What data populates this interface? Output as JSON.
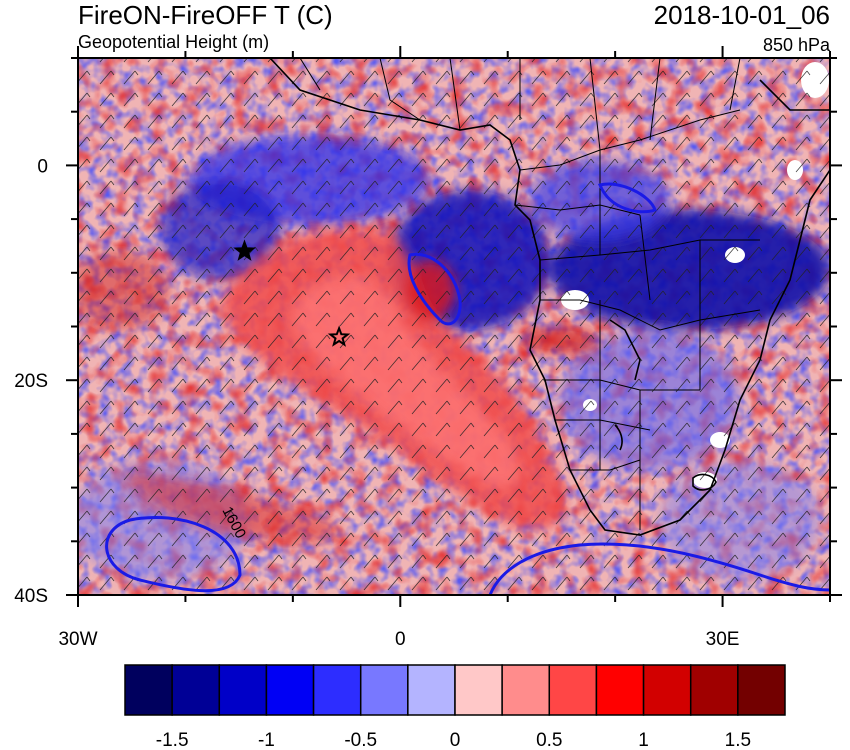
{
  "header": {
    "title": "FireON-FireOFF T (C)",
    "subtitle": "Geopotential Height (m)",
    "datetime": "2018-10-01_06",
    "level": "850 hPa"
  },
  "map": {
    "projection": "cylindrical-equidistant",
    "lon_range": [
      -30,
      40
    ],
    "lat_range": [
      -40,
      10
    ],
    "x_ticks": [
      {
        "value": -30,
        "label": "30W"
      },
      {
        "value": 0,
        "label": "0"
      },
      {
        "value": 30,
        "label": "30E"
      }
    ],
    "y_ticks": [
      {
        "value": 0,
        "label": "0"
      },
      {
        "value": -20,
        "label": "20S"
      },
      {
        "value": -40,
        "label": "40S"
      }
    ],
    "x_minor_step": 10,
    "y_minor_step": 5,
    "contour_label": "1600",
    "markers": [
      {
        "type": "filled-star",
        "lon": -14.5,
        "lat": -8
      },
      {
        "type": "open-star",
        "lon": -5.7,
        "lat": -16
      }
    ],
    "colors": {
      "ocean_background": "#f2b3b3",
      "contour": "#1a1ae6",
      "borders": "#000000"
    }
  },
  "colorbar": {
    "colors": [
      "#00005e",
      "#000096",
      "#0000c8",
      "#0000f5",
      "#2d2dff",
      "#7878ff",
      "#b4b4ff",
      "#ffc8c8",
      "#ff8c8c",
      "#ff4646",
      "#ff0000",
      "#d20000",
      "#a00000",
      "#730000"
    ],
    "labels": [
      "-1.5",
      "-1",
      "-0.5",
      "0",
      "0.5",
      "1",
      "1.5"
    ]
  }
}
